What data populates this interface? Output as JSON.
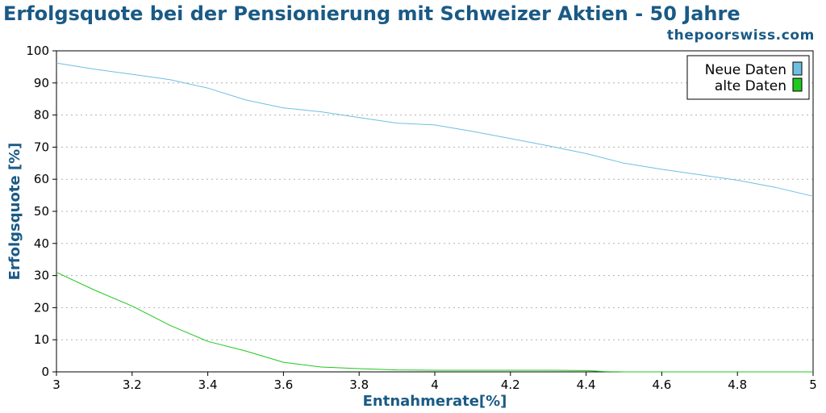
{
  "header": {
    "title": "Erfolgsquote bei der Pensionierung mit Schweizer Aktien - 50 Jahre",
    "source": "thepoorswiss.com"
  },
  "colors": {
    "text_blue": "#1a5a85",
    "series_new": "#6fbfe0",
    "series_old": "#1ec81e",
    "grid": "#b0b0b0"
  },
  "chart_data": {
    "type": "line",
    "xlabel": "Entnahmerate[%]",
    "ylabel": "Erfolgsquote [%]",
    "xlim": [
      3,
      5
    ],
    "ylim": [
      0,
      100
    ],
    "xticks": [
      "3",
      "3.2",
      "3.4",
      "3.6",
      "3.8",
      "4",
      "4.2",
      "4.4",
      "4.6",
      "4.8",
      "5"
    ],
    "yticks": [
      "0",
      "10",
      "20",
      "30",
      "40",
      "50",
      "60",
      "70",
      "80",
      "90",
      "100"
    ],
    "grid": "horizontal dotted",
    "legend_position": "top-right",
    "series": [
      {
        "name": "Neue Daten",
        "color": "#6fbfe0",
        "x": [
          3.0,
          3.1,
          3.2,
          3.3,
          3.4,
          3.5,
          3.6,
          3.7,
          3.8,
          3.9,
          4.0,
          4.1,
          4.2,
          4.3,
          4.4,
          4.5,
          4.6,
          4.7,
          4.8,
          4.9,
          5.0
        ],
        "y": [
          96.2,
          94.3,
          92.7,
          91.0,
          88.4,
          84.7,
          82.2,
          81.0,
          79.2,
          77.5,
          76.9,
          74.9,
          72.7,
          70.4,
          68.0,
          65.0,
          63.1,
          61.4,
          59.7,
          57.5,
          54.7
        ]
      },
      {
        "name": "alte Daten",
        "color": "#1ec81e",
        "x": [
          3.0,
          3.1,
          3.2,
          3.3,
          3.4,
          3.5,
          3.6,
          3.7,
          3.8,
          3.9,
          4.0,
          4.1,
          4.2,
          4.3,
          4.4,
          4.45,
          4.5,
          4.6,
          4.7,
          4.8,
          4.9,
          5.0
        ],
        "y": [
          31.0,
          25.5,
          20.5,
          14.5,
          9.5,
          6.5,
          3.0,
          1.5,
          1.0,
          0.6,
          0.5,
          0.5,
          0.5,
          0.5,
          0.4,
          0.1,
          0.0,
          0.0,
          0.0,
          0.0,
          0.0,
          0.0
        ]
      }
    ]
  }
}
